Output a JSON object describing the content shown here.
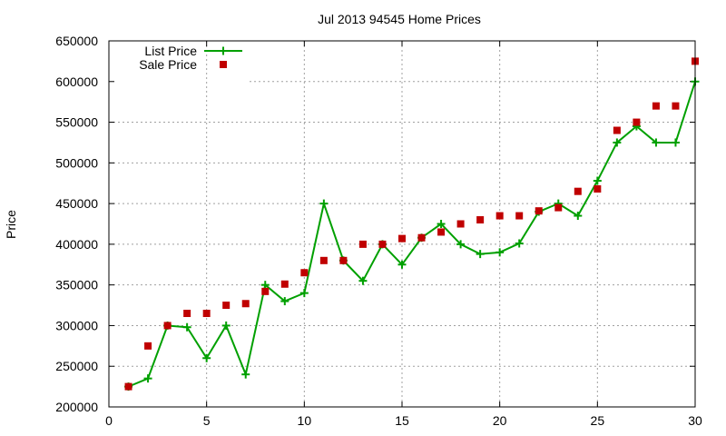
{
  "chart_data": {
    "type": "line",
    "title": "Jul 2013 94545 Home Prices",
    "xlabel": "",
    "ylabel": "Price",
    "xlim": [
      0,
      30
    ],
    "ylim": [
      200000,
      650000
    ],
    "x_ticks": [
      0,
      5,
      10,
      15,
      20,
      25,
      30
    ],
    "y_ticks": [
      200000,
      250000,
      300000,
      350000,
      400000,
      450000,
      500000,
      550000,
      600000,
      650000
    ],
    "grid": true,
    "legend_position": "top-left",
    "x": [
      1,
      2,
      3,
      4,
      5,
      6,
      7,
      8,
      9,
      10,
      11,
      12,
      13,
      14,
      15,
      16,
      17,
      18,
      19,
      20,
      21,
      22,
      23,
      24,
      25,
      26,
      27,
      28,
      29,
      30
    ],
    "series": [
      {
        "name": "List Price",
        "style": "line-plus",
        "color": "#00a000",
        "values": [
          225000,
          235000,
          300000,
          298000,
          260000,
          300000,
          240000,
          350000,
          330000,
          340000,
          450000,
          380000,
          355000,
          400000,
          375000,
          408000,
          425000,
          400000,
          388000,
          390000,
          401000,
          440000,
          450000,
          435000,
          478000,
          525000,
          545000,
          525000,
          525000,
          600000
        ]
      },
      {
        "name": "Sale Price",
        "style": "square-points",
        "color": "#c00000",
        "values": [
          225000,
          275000,
          300000,
          315000,
          315000,
          325000,
          327000,
          342000,
          351000,
          365000,
          380000,
          380000,
          400000,
          400000,
          407000,
          408000,
          415000,
          425000,
          430000,
          435000,
          435000,
          441000,
          445000,
          465000,
          468000,
          540000,
          550000,
          570000,
          570000,
          625000
        ]
      }
    ]
  }
}
